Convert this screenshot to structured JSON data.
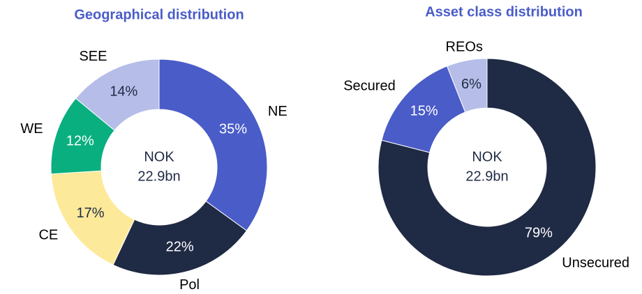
{
  "chart_data": [
    {
      "type": "pie",
      "title": "Geographical distribution",
      "center_text": [
        "NOK",
        "22.9bn"
      ],
      "categories": [
        "NE",
        "Pol",
        "CE",
        "WE",
        "SEE"
      ],
      "values": [
        35,
        22,
        17,
        12,
        14
      ],
      "value_labels": [
        "35%",
        "22%",
        "17%",
        "12%",
        "14%"
      ],
      "colors": [
        "#4a5cc8",
        "#1f2a44",
        "#fde99a",
        "#0aaf7f",
        "#b5bde8"
      ]
    },
    {
      "type": "pie",
      "title": "Asset class distribution",
      "center_text": [
        "NOK",
        "22.9bn"
      ],
      "categories": [
        "Unsecured",
        "Secured",
        "REOs"
      ],
      "values": [
        79,
        15,
        6
      ],
      "value_labels": [
        "79%",
        "15%",
        "6%"
      ],
      "colors": [
        "#1f2a44",
        "#4a5cc8",
        "#b5bde8"
      ]
    }
  ]
}
